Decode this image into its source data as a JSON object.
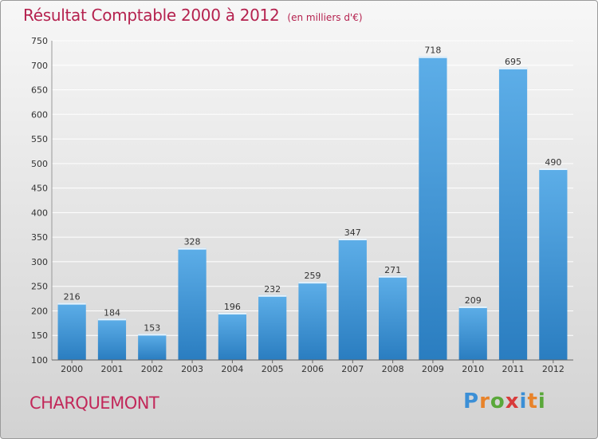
{
  "header": {
    "title": "Résultat Comptable 2000 à 2012",
    "subtitle": "(en milliers d'€)"
  },
  "footer": {
    "commune": "CHARQUEMONT",
    "logo_text": "Proxiti"
  },
  "colors": {
    "bar_top": "#5daee8",
    "bar_bottom": "#2a7dc0",
    "title": "#b5224f",
    "grid": "#ffffff"
  },
  "chart_data": {
    "type": "bar",
    "title": "Résultat Comptable 2000 à 2012",
    "subtitle": "(en milliers d'€)",
    "xlabel": "",
    "ylabel": "",
    "categories": [
      "2000",
      "2001",
      "2002",
      "2003",
      "2004",
      "2005",
      "2006",
      "2007",
      "2008",
      "2009",
      "2010",
      "2011",
      "2012"
    ],
    "values": [
      216,
      184,
      153,
      328,
      196,
      232,
      259,
      347,
      271,
      718,
      209,
      695,
      490
    ],
    "ylim": [
      100,
      750
    ],
    "yticks": [
      100,
      150,
      200,
      250,
      300,
      350,
      400,
      450,
      500,
      550,
      600,
      650,
      700,
      750
    ],
    "grid": true
  }
}
